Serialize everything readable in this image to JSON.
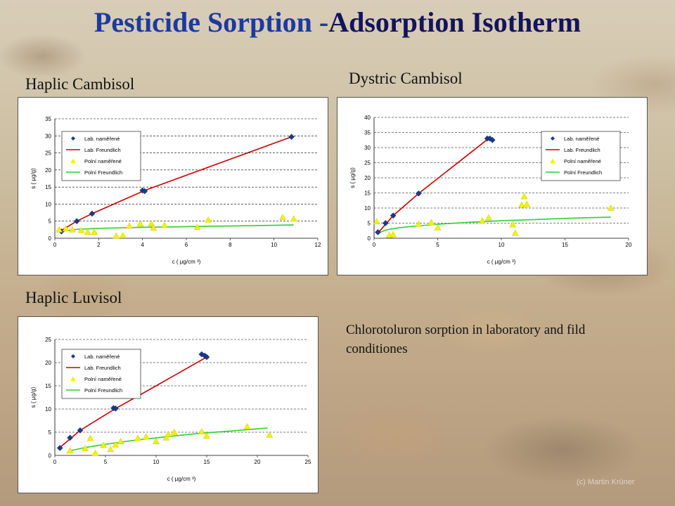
{
  "title": {
    "part1": "Pesticide Sorption -",
    "part2": "Adsorption Isotherm"
  },
  "note": "Chlorotoluron sorption in laboratory and fild conditiones",
  "credit": "(c) Martin Krüner",
  "chart_data": [
    {
      "name": "Haplic Cambisol",
      "type": "scatter",
      "xlabel": "c ( µg/cm ³)",
      "ylabel": "s ( µg/g)",
      "xlim": [
        0,
        12
      ],
      "ylim": [
        0,
        35
      ],
      "xticks": [
        0,
        2,
        4,
        6,
        8,
        10,
        12
      ],
      "yticks": [
        0,
        5,
        10,
        15,
        20,
        25,
        30,
        35
      ],
      "grid": "horizontal dashed",
      "legend_position": "top-left",
      "series": [
        {
          "name": "Lab. naměřené",
          "kind": "marker",
          "shape": "diamond",
          "color": "#1a3a8c",
          "x": [
            0.3,
            1.0,
            1.7,
            4.0,
            4.1,
            10.8
          ],
          "y": [
            2.0,
            5.0,
            7.2,
            14.0,
            13.8,
            29.7
          ]
        },
        {
          "name": "Lab. Freundlich",
          "kind": "line",
          "color": "#cc0000",
          "x": [
            0.3,
            1.0,
            1.7,
            4.1,
            10.8
          ],
          "y": [
            2.3,
            5.0,
            7.2,
            14.0,
            29.7
          ]
        },
        {
          "name": "Polní naměřené",
          "kind": "marker",
          "shape": "triangle",
          "color": "#f2f200",
          "x": [
            0.2,
            0.5,
            0.8,
            1.2,
            1.5,
            1.8,
            2.8,
            3.1,
            3.4,
            3.9,
            4.4,
            4.5,
            5.0,
            6.5,
            7.0,
            10.4,
            10.9
          ],
          "y": [
            2.5,
            2.8,
            2.5,
            2.3,
            1.8,
            1.8,
            0.7,
            0.8,
            3.6,
            4.2,
            4.3,
            3.0,
            3.8,
            3.2,
            5.4,
            6.1,
            5.7
          ]
        },
        {
          "name": "Polní Freundlich",
          "kind": "line",
          "color": "#33cc33",
          "x": [
            0.2,
            1.0,
            2.0,
            4.0,
            6.0,
            8.0,
            10.0,
            10.9
          ],
          "y": [
            2.0,
            2.6,
            2.9,
            3.2,
            3.4,
            3.6,
            3.8,
            3.9
          ]
        }
      ]
    },
    {
      "name": "Dystric Cambisol",
      "type": "scatter",
      "xlabel": "c ( µg/cm ³)",
      "ylabel": "s ( µg/g)",
      "xlim": [
        0,
        20
      ],
      "ylim": [
        0,
        40
      ],
      "xticks": [
        0,
        5,
        10,
        15,
        20
      ],
      "yticks": [
        0,
        5,
        10,
        15,
        20,
        25,
        30,
        35,
        40
      ],
      "grid": "horizontal dashed",
      "legend_position": "top-right",
      "series": [
        {
          "name": "Lab. naměřené",
          "kind": "marker",
          "shape": "diamond",
          "color": "#1a3a8c",
          "x": [
            0.3,
            0.9,
            1.5,
            3.5,
            8.9,
            9.1,
            9.3
          ],
          "y": [
            2.0,
            5.0,
            7.5,
            14.8,
            33.0,
            33.0,
            32.5
          ]
        },
        {
          "name": "Lab. Freundlich",
          "kind": "line",
          "color": "#cc0000",
          "x": [
            0.3,
            1.5,
            3.5,
            9.0,
            9.3
          ],
          "y": [
            1.7,
            7.5,
            14.8,
            33.0,
            32.5
          ]
        },
        {
          "name": "Polní naměřené",
          "kind": "marker",
          "shape": "triangle",
          "color": "#f2f200",
          "x": [
            0.2,
            1.2,
            1.5,
            3.5,
            4.5,
            5.0,
            8.5,
            9.0,
            10.9,
            11.1,
            11.6,
            11.8,
            12.0,
            18.6
          ],
          "y": [
            5.5,
            1.0,
            1.2,
            4.7,
            5.2,
            3.5,
            5.8,
            6.8,
            4.5,
            1.7,
            11.0,
            13.8,
            11.2,
            10.0
          ]
        },
        {
          "name": "Polní Freundlich",
          "kind": "line",
          "color": "#33cc33",
          "x": [
            0.2,
            1.0,
            2.0,
            4.0,
            6.0,
            8.0,
            10.0,
            12.0,
            14.0,
            16.0,
            18.6
          ],
          "y": [
            1.5,
            2.8,
            3.5,
            4.3,
            4.9,
            5.4,
            5.8,
            6.1,
            6.4,
            6.7,
            7.0
          ]
        }
      ]
    },
    {
      "name": "Haplic Luvisol",
      "type": "scatter",
      "xlabel": "c ( µg/cm ³)",
      "ylabel": "s ( µg/g)",
      "xlim": [
        0,
        25
      ],
      "ylim": [
        0,
        25
      ],
      "xticks": [
        0,
        5,
        10,
        15,
        20,
        25
      ],
      "yticks": [
        0,
        5,
        10,
        15,
        20,
        25
      ],
      "grid": "horizontal dashed",
      "legend_position": "top-left",
      "series": [
        {
          "name": "Lab. naměřené",
          "kind": "marker",
          "shape": "diamond",
          "color": "#1a3a8c",
          "x": [
            0.5,
            1.5,
            2.5,
            5.8,
            6.0,
            14.5,
            14.8,
            15.0
          ],
          "y": [
            1.6,
            3.8,
            5.4,
            10.2,
            10.1,
            21.8,
            21.5,
            21.2
          ]
        },
        {
          "name": "Lab. Freundlich",
          "kind": "line",
          "color": "#cc0000",
          "x": [
            0.5,
            2.5,
            6.0,
            10.0,
            15.0
          ],
          "y": [
            1.7,
            5.4,
            10.1,
            15.0,
            21.2
          ]
        },
        {
          "name": "Polní naměřené",
          "kind": "marker",
          "shape": "triangle",
          "color": "#f2f200",
          "x": [
            1.5,
            3.0,
            3.5,
            4.0,
            4.8,
            5.5,
            6.0,
            6.5,
            8.2,
            9.0,
            10.0,
            11.0,
            11.2,
            11.8,
            14.5,
            15.0,
            19.0,
            21.2
          ],
          "y": [
            1.0,
            1.5,
            3.7,
            0.5,
            2.2,
            1.3,
            2.3,
            3.0,
            3.7,
            4.0,
            3.0,
            3.8,
            4.6,
            5.0,
            5.1,
            4.2,
            6.2,
            4.4
          ]
        },
        {
          "name": "Polní Freundlich",
          "kind": "line",
          "color": "#33cc33",
          "x": [
            1.5,
            3.0,
            5.0,
            8.0,
            11.0,
            14.0,
            17.0,
            21.0
          ],
          "y": [
            1.0,
            1.7,
            2.4,
            3.3,
            4.0,
            4.7,
            5.2,
            5.9
          ]
        }
      ]
    }
  ]
}
